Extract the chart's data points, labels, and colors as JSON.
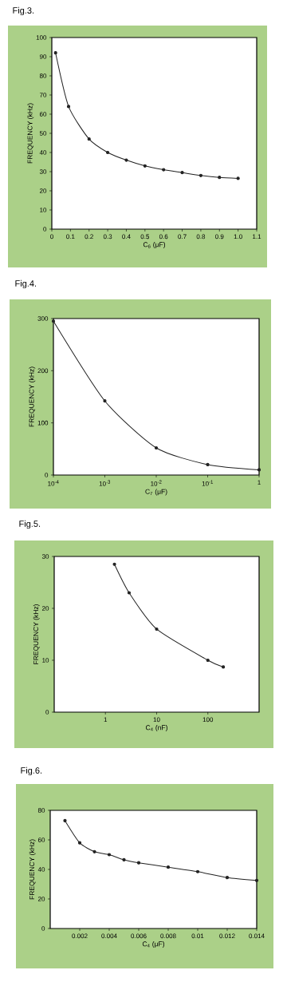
{
  "chart_data": [
    {
      "type": "line",
      "title": "Fig.3.",
      "xlabel": "C$_{6}$ (μF)",
      "ylabel": "FREQUENCY (kHz)",
      "color": "#222222",
      "marker": "circle",
      "line_style": "solid",
      "x": [
        0.02,
        0.09,
        0.2,
        0.3,
        0.4,
        0.5,
        0.6,
        0.7,
        0.8,
        0.9,
        1.0
      ],
      "values": [
        92,
        64,
        47,
        40,
        36,
        33,
        31,
        29.5,
        28,
        27,
        26.5
      ],
      "xlim": [
        0,
        1.1
      ],
      "xticks": [
        0,
        0.1,
        0.2,
        0.3,
        0.4,
        0.5,
        0.6,
        0.7,
        0.8,
        0.9,
        {
          "value": 1,
          "label": "1.0"
        },
        1.1
      ],
      "ylim": [
        0,
        100
      ],
      "yticks": [
        0,
        10,
        20,
        30,
        40,
        50,
        60,
        70,
        80,
        90,
        100
      ]
    },
    {
      "type": "line",
      "title": "Fig.4.",
      "xlabel": "C$_{7}$ (μF)",
      "ylabel": "FREQUENCY (kHz)",
      "color": "#222222",
      "marker": "circle",
      "line_style": "solid",
      "log": "x",
      "x": [
        0.0001,
        0.001,
        0.01,
        0.1,
        1
      ],
      "values": [
        295,
        142,
        52,
        20,
        10
      ],
      "xlim": [
        0.0001,
        1
      ],
      "xticks": [
        {
          "value": 0.0001,
          "label": "10$^{-4}$"
        },
        {
          "value": 0.001,
          "label": "10$^{-3}$"
        },
        {
          "value": 0.01,
          "label": "10$^{-2}$"
        },
        {
          "value": 0.1,
          "label": "10$^{-1}$"
        },
        1
      ],
      "ylim": [
        0,
        300
      ],
      "yticks": [
        0,
        100,
        200,
        300
      ]
    },
    {
      "type": "line",
      "title": "Fig.5.",
      "xlabel": "C$_{4}$ (nF)",
      "ylabel": "FREQUENCY (kHz)",
      "color": "#222222",
      "marker": "circle",
      "line_style": "solid",
      "log": "x",
      "x": [
        1.5,
        2.9,
        10,
        100,
        200
      ],
      "values": [
        28.5,
        23,
        16,
        10,
        8.7
      ],
      "xlim": [
        0.1,
        1000
      ],
      "xticks": [
        1,
        10,
        100
      ],
      "ylim": [
        0,
        30
      ],
      "yticks": [
        0,
        10,
        20,
        30
      ]
    },
    {
      "type": "line",
      "title": "Fig.6.",
      "xlabel": "C$_{4}$ (μF)",
      "ylabel": "FREQUENCY (kHz)",
      "color": "#222222",
      "marker": "circle",
      "line_style": "solid",
      "x": [
        0.001,
        0.002,
        0.003,
        0.004,
        0.005,
        0.006,
        0.008,
        0.01,
        0.012,
        0.014
      ],
      "values": [
        73,
        58,
        52,
        50,
        46.5,
        44.5,
        41.5,
        38.5,
        34.5,
        32.5
      ],
      "xlim": [
        0,
        0.014
      ],
      "xticks": [
        0.002,
        0.004,
        0.006,
        0.008,
        0.01,
        0.012,
        0.014
      ],
      "ylim": [
        0,
        80
      ],
      "yticks": [
        0,
        20,
        40,
        60,
        80
      ]
    }
  ]
}
